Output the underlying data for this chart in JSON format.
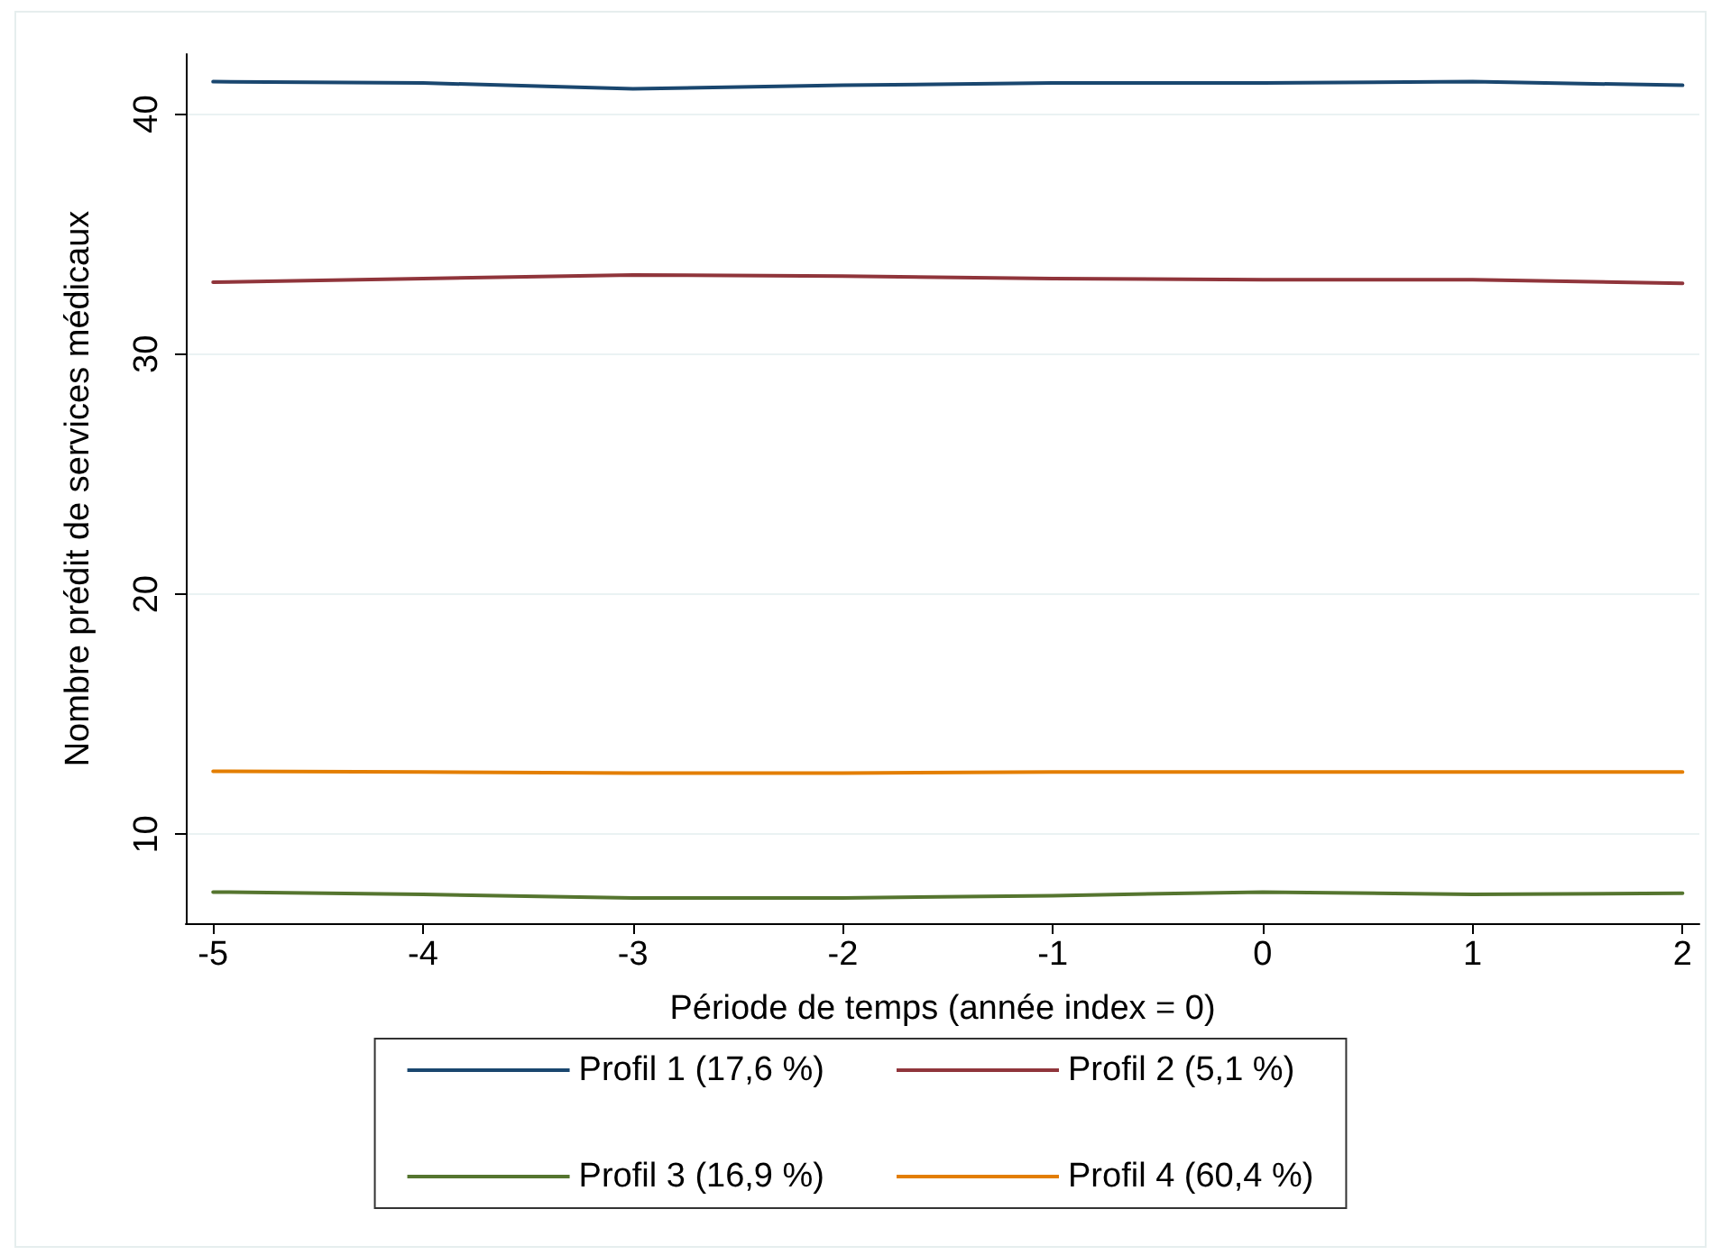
{
  "chart_data": {
    "type": "line",
    "xlabel": "Période de temps (année index = 0)",
    "ylabel": "Nombre prédit de services médicaux",
    "x": [
      -5,
      -4,
      -3,
      -2,
      -1,
      0,
      1,
      2
    ],
    "series": [
      {
        "name": "Profil 1 (17,6 %)",
        "color": "#1a476f",
        "values": [
          41.35,
          41.3,
          41.05,
          41.2,
          41.3,
          41.3,
          41.35,
          41.2
        ]
      },
      {
        "name": "Profil 2 (5,1 %)",
        "color": "#90353b",
        "values": [
          33.0,
          33.15,
          33.3,
          33.25,
          33.15,
          33.1,
          33.1,
          32.95
        ]
      },
      {
        "name": "Profil 3 (16,9 %)",
        "color": "#55752f",
        "values": [
          7.6,
          7.5,
          7.35,
          7.35,
          7.45,
          7.6,
          7.5,
          7.55
        ]
      },
      {
        "name": "Profil 4 (60,4 %)",
        "color": "#e37e00",
        "values": [
          12.63,
          12.6,
          12.55,
          12.55,
          12.6,
          12.6,
          12.6,
          12.6
        ]
      }
    ],
    "xlim": [
      -5.13,
      2.08
    ],
    "xticks": [
      -5,
      -4,
      -3,
      -2,
      -1,
      0,
      1,
      2
    ],
    "ylim": [
      6.3,
      42.5
    ],
    "yticks": [
      10,
      20,
      30,
      40
    ],
    "grid": "y",
    "legend": "bottom",
    "marker": "none",
    "line_style": "solid"
  }
}
